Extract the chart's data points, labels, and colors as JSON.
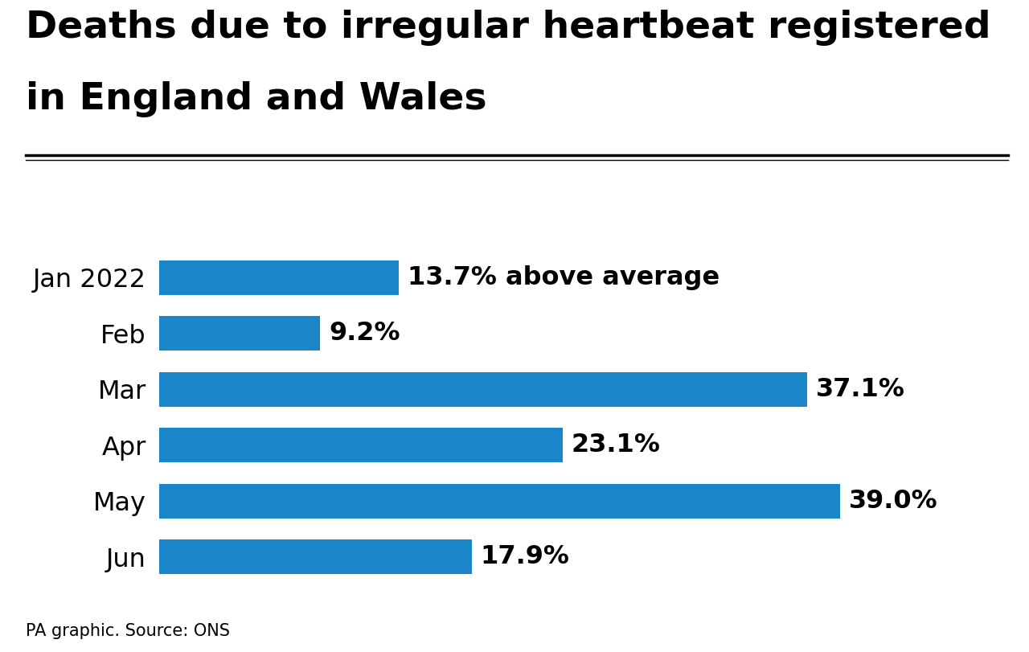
{
  "title_line1": "Deaths due to irregular heartbeat registered",
  "title_line2": "in England and Wales",
  "categories": [
    "Jan 2022",
    "Feb",
    "Mar",
    "Apr",
    "May",
    "Jun"
  ],
  "values": [
    13.7,
    9.2,
    37.1,
    23.1,
    39.0,
    17.9
  ],
  "labels": [
    "13.7% above average",
    "9.2%",
    "37.1%",
    "23.1%",
    "39.0%",
    "17.9%"
  ],
  "bar_color": "#1a85c8",
  "background_color": "#ffffff",
  "text_color": "#000000",
  "source_text": "PA graphic. Source: ONS",
  "title_fontsize": 34,
  "label_fontsize": 23,
  "category_fontsize": 23,
  "source_fontsize": 15,
  "xlim": [
    0,
    46
  ],
  "bar_height": 0.62
}
